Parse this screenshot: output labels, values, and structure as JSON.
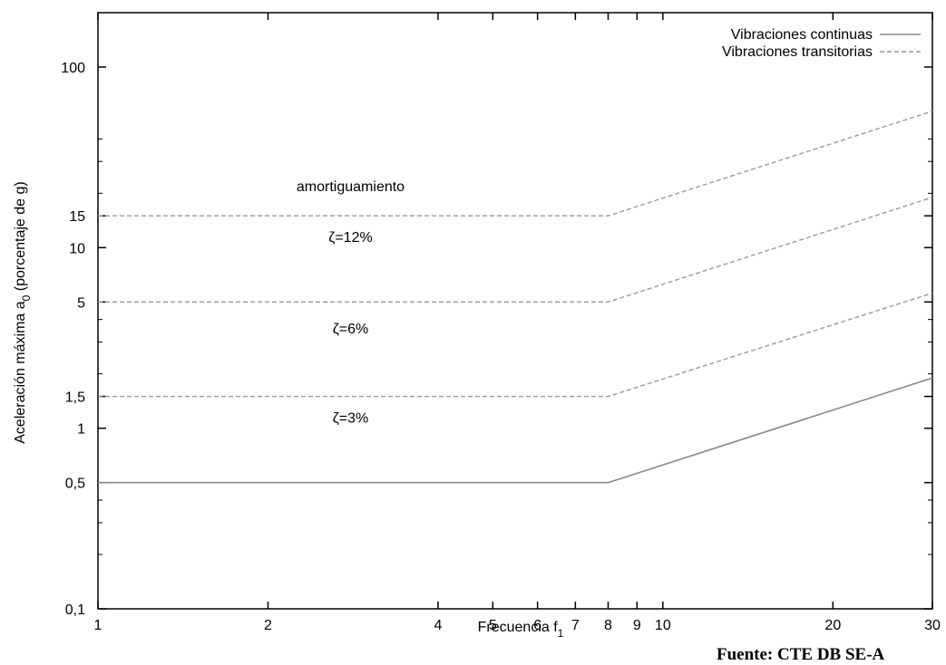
{
  "chart_data": {
    "type": "line",
    "x_scale": "log",
    "y_scale": "log",
    "xlabel_main": "Frecuencia f",
    "xlabel_sub": "1",
    "ylabel_main": "Aceleración máxima a",
    "ylabel_sub": "0",
    "ylabel_tail": " (porcentaje de g)",
    "xlim": [
      1,
      30
    ],
    "ylim": [
      0.1,
      200
    ],
    "x_ticks": [
      {
        "value": 1,
        "label": "1"
      },
      {
        "value": 2,
        "label": "2"
      },
      {
        "value": 4,
        "label": "4"
      },
      {
        "value": 5,
        "label": "5"
      },
      {
        "value": 6,
        "label": "6"
      },
      {
        "value": 7,
        "label": "7"
      },
      {
        "value": 8,
        "label": "8"
      },
      {
        "value": 9,
        "label": "9"
      },
      {
        "value": 10,
        "label": "10"
      },
      {
        "value": 20,
        "label": "20"
      },
      {
        "value": 30,
        "label": "30"
      }
    ],
    "y_ticks": [
      {
        "value": 0.1,
        "label": "0,1"
      },
      {
        "value": 0.5,
        "label": "0,5"
      },
      {
        "value": 1,
        "label": "1"
      },
      {
        "value": 1.5,
        "label": "1,5"
      },
      {
        "value": 5,
        "label": "5"
      },
      {
        "value": 10,
        "label": "10"
      },
      {
        "value": 15,
        "label": "15"
      },
      {
        "value": 100,
        "label": "100"
      }
    ],
    "y_minor_ticks": [
      0.2,
      0.3,
      0.4,
      2,
      3,
      4,
      20,
      30,
      40
    ],
    "grid": false,
    "legend_position": "top-right",
    "legend": [
      {
        "label": "Vibraciones continuas",
        "style": "solid"
      },
      {
        "label": "Vibraciones transitorias",
        "style": "dashed"
      }
    ],
    "series": [
      {
        "style": "solid",
        "x": [
          1,
          8,
          30
        ],
        "y": [
          0.5,
          0.5,
          1.9
        ]
      },
      {
        "style": "dashed",
        "x": [
          1,
          8,
          30
        ],
        "y": [
          1.5,
          1.5,
          5.6
        ]
      },
      {
        "style": "dashed",
        "x": [
          1,
          8,
          30
        ],
        "y": [
          5,
          5,
          19
        ]
      },
      {
        "style": "dashed",
        "x": [
          1,
          8,
          30
        ],
        "y": [
          15,
          15,
          57
        ]
      }
    ],
    "annotations": [
      {
        "text": "amortiguamiento",
        "x": 2.8,
        "y": 22
      },
      {
        "text": "ζ=12%",
        "x": 2.8,
        "y": 11.5
      },
      {
        "text": "ζ=6%",
        "x": 2.8,
        "y": 3.6
      },
      {
        "text": "ζ=3%",
        "x": 2.8,
        "y": 1.15
      }
    ],
    "colors": {
      "solid": "#888888",
      "dashed": "#999999",
      "axis": "#000000"
    }
  },
  "source_note": "Fuente: CTE DB SE-A"
}
